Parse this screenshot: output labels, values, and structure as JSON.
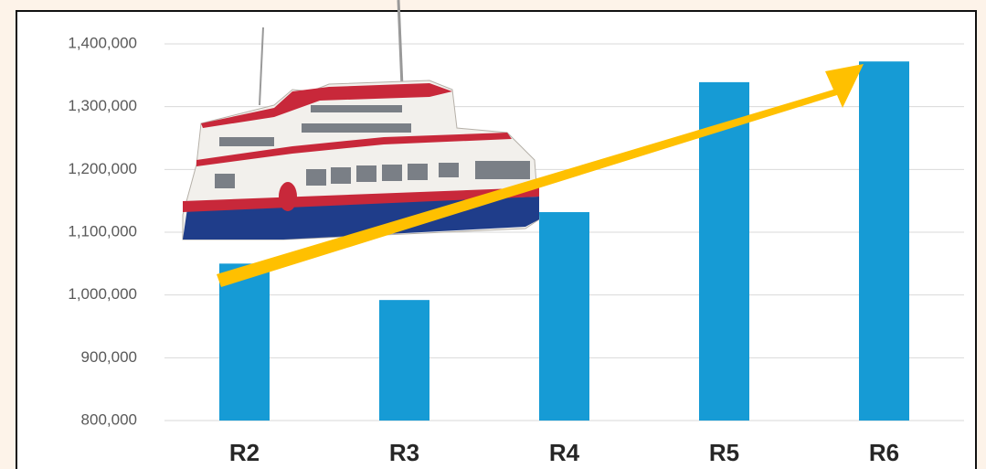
{
  "chart_data": {
    "type": "bar",
    "categories": [
      "R2",
      "R3",
      "R4",
      "R5",
      "R6"
    ],
    "values": [
      1050000,
      992000,
      1132000,
      1339000,
      1372000
    ],
    "color": "#169bd5",
    "ylim": [
      800000,
      1400000
    ],
    "yticks": [
      {
        "value": 800000,
        "label": "800,000"
      },
      {
        "value": 900000,
        "label": "900,000"
      },
      {
        "value": 1000000,
        "label": "1,000,000"
      },
      {
        "value": 1100000,
        "label": "1,100,000"
      },
      {
        "value": 1200000,
        "label": "1,200,000"
      },
      {
        "value": 1300000,
        "label": "1,300,000"
      },
      {
        "value": 1400000,
        "label": "1,400,000"
      }
    ],
    "grid": true
  }
}
